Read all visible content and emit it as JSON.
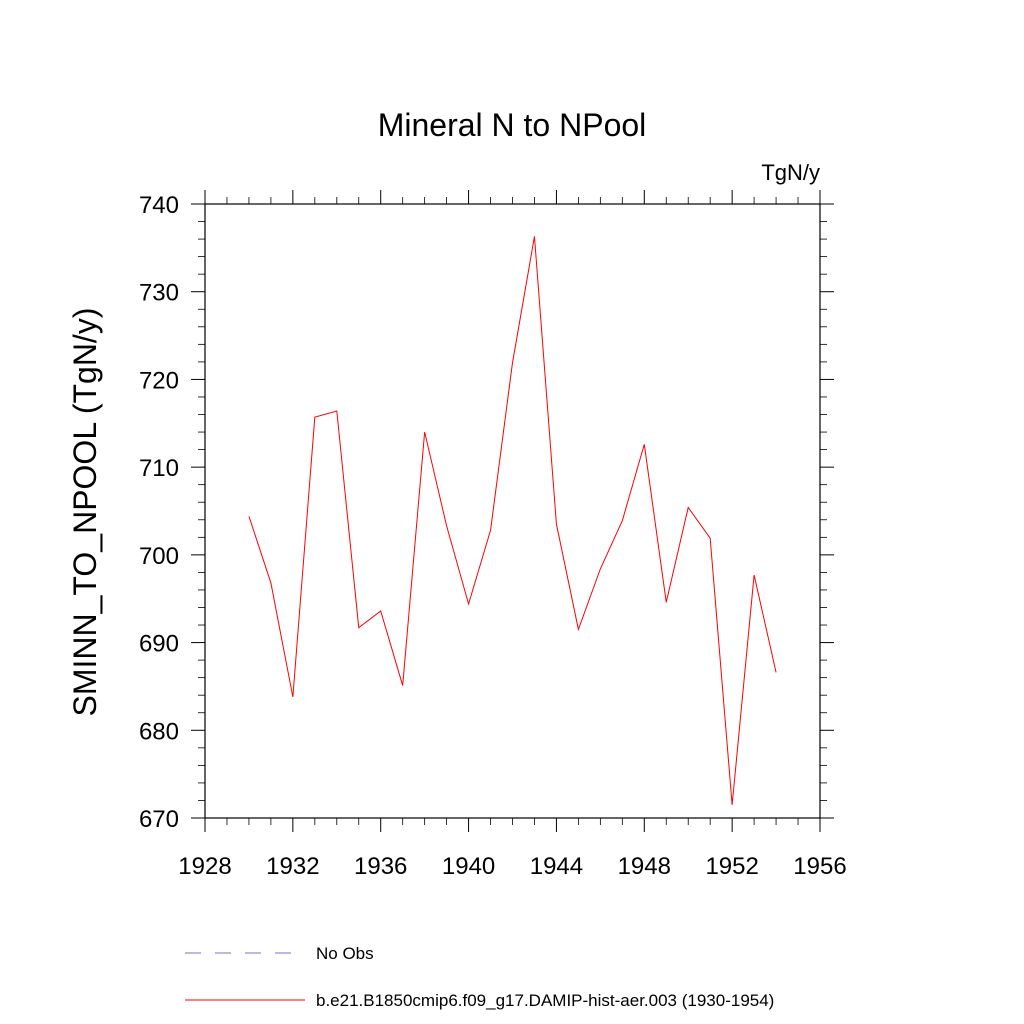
{
  "chart_data": {
    "type": "line",
    "title": "Mineral N to NPool",
    "units_label": "TgN/y",
    "ylabel": "SMINN_TO_NPOOL  (TgN/y)",
    "xlabel": "",
    "xlim": [
      1928,
      1956
    ],
    "ylim": [
      670,
      740
    ],
    "x_ticks": [
      1928,
      1932,
      1936,
      1940,
      1944,
      1948,
      1952,
      1956
    ],
    "y_ticks": [
      670,
      680,
      690,
      700,
      710,
      720,
      730,
      740
    ],
    "grid": false,
    "legend_position": "bottom",
    "series": [
      {
        "name": "b.e21.B1850cmip6.f09_g17.DAMIP-hist-aer.003 (1930-1954)",
        "color": "#ff0000",
        "x": [
          1930,
          1931,
          1932,
          1933,
          1934,
          1935,
          1936,
          1937,
          1938,
          1939,
          1940,
          1941,
          1942,
          1943,
          1944,
          1945,
          1946,
          1947,
          1948,
          1949,
          1950,
          1951,
          1952,
          1953,
          1954
        ],
        "values": [
          704.4,
          696.8,
          683.8,
          715.7,
          716.4,
          691.7,
          693.6,
          685.1,
          714.0,
          703.3,
          694.4,
          702.8,
          721.9,
          736.3,
          703.5,
          691.5,
          698.4,
          703.9,
          712.6,
          694.6,
          705.4,
          701.9,
          671.5,
          697.7,
          686.6
        ]
      }
    ],
    "legend": [
      {
        "label": "No Obs",
        "color": "#7b6fd0",
        "dashed": true
      },
      {
        "label": "b.e21.B1850cmip6.f09_g17.DAMIP-hist-aer.003 (1930-1954)",
        "color": "#ff0000",
        "dashed": false
      }
    ]
  }
}
